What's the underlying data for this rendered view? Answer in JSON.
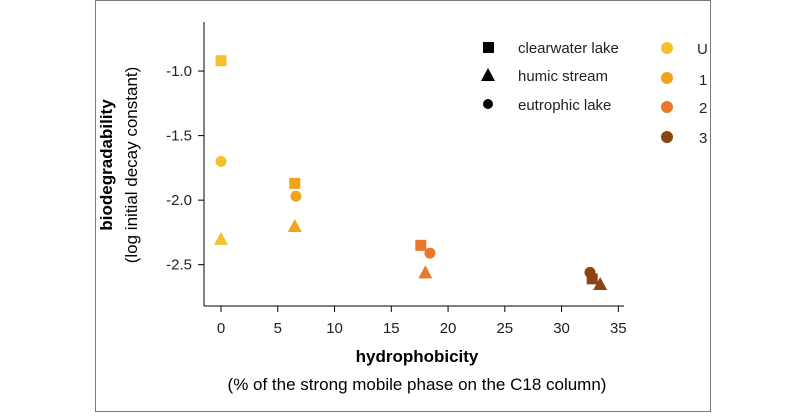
{
  "chart_data": {
    "type": "scatter",
    "xlabel": "hydrophobicity",
    "xlabel_sub": "(% of the strong mobile phase on the C18 column)",
    "ylabel": "biodegradability",
    "ylabel_sub": "(log initial decay constant)",
    "xlim": [
      -1.5,
      35.5
    ],
    "ylim": [
      -2.82,
      -0.62
    ],
    "xticks": [
      0,
      5,
      10,
      15,
      20,
      25,
      30,
      35
    ],
    "yticks": [
      -1.0,
      -1.5,
      -2.0,
      -2.5
    ],
    "ytick_labels": [
      "-1.0",
      "-1.5",
      "-2.0",
      "-2.5"
    ],
    "shape_legend": [
      {
        "marker": "square",
        "label": "clearwater lake"
      },
      {
        "marker": "triangle",
        "label": "humic stream"
      },
      {
        "marker": "circle",
        "label": "eutrophic lake"
      }
    ],
    "color_legend": [
      {
        "label": "U",
        "color": "#F5C02E"
      },
      {
        "label": "1",
        "color": "#F0A41A"
      },
      {
        "label": "2",
        "color": "#E8792A"
      },
      {
        "label": "3",
        "color": "#8B4513"
      }
    ],
    "points": [
      {
        "x": 0.0,
        "y": -0.92,
        "marker": "square",
        "group": "U"
      },
      {
        "x": 0.0,
        "y": -1.7,
        "marker": "circle",
        "group": "U"
      },
      {
        "x": 0.0,
        "y": -2.3,
        "marker": "triangle",
        "group": "U"
      },
      {
        "x": 6.5,
        "y": -1.87,
        "marker": "square",
        "group": "1"
      },
      {
        "x": 6.6,
        "y": -1.97,
        "marker": "circle",
        "group": "1"
      },
      {
        "x": 6.5,
        "y": -2.2,
        "marker": "triangle",
        "group": "1"
      },
      {
        "x": 17.6,
        "y": -2.35,
        "marker": "square",
        "group": "2"
      },
      {
        "x": 18.4,
        "y": -2.41,
        "marker": "circle",
        "group": "2"
      },
      {
        "x": 18.0,
        "y": -2.56,
        "marker": "triangle",
        "group": "2"
      },
      {
        "x": 32.5,
        "y": -2.56,
        "marker": "circle",
        "group": "3"
      },
      {
        "x": 32.7,
        "y": -2.61,
        "marker": "square",
        "group": "3"
      },
      {
        "x": 33.4,
        "y": -2.65,
        "marker": "triangle",
        "group": "3"
      }
    ]
  }
}
